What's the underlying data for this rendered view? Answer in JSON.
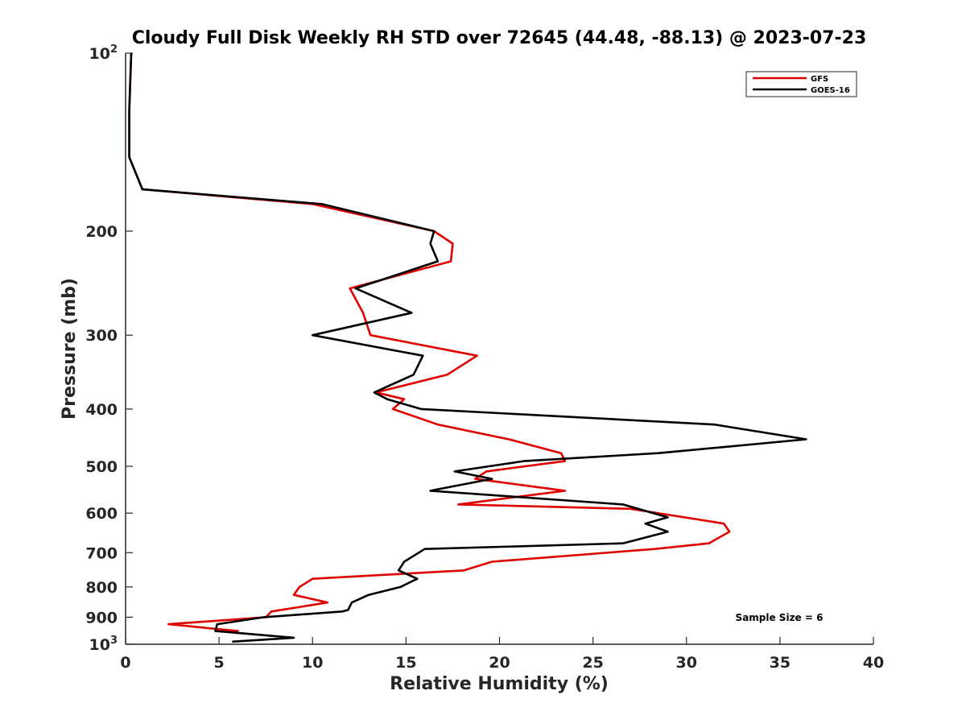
{
  "chart_data": {
    "type": "line",
    "title": "Cloudy Full Disk Weekly RH STD over 72645 (44.48, -88.13) @ 2023-07-23",
    "xlabel": "Relative Humidity (%)",
    "ylabel": "Pressure (mb)",
    "xlim": [
      0,
      40
    ],
    "ylim": [
      100,
      1000
    ],
    "y_scale": "log",
    "y_reversed": true,
    "x_ticks": [
      0,
      5,
      10,
      15,
      20,
      25,
      30,
      35,
      40
    ],
    "y_ticks": [
      {
        "value": 100,
        "base": "10",
        "exp": "2"
      },
      {
        "value": 200,
        "label": "200"
      },
      {
        "value": 300,
        "label": "300"
      },
      {
        "value": 400,
        "label": "400"
      },
      {
        "value": 500,
        "label": "500"
      },
      {
        "value": 600,
        "label": "600"
      },
      {
        "value": 700,
        "label": "700"
      },
      {
        "value": 800,
        "label": "800"
      },
      {
        "value": 900,
        "label": "900"
      },
      {
        "value": 1000,
        "base": "10",
        "exp": "3"
      }
    ],
    "grid": false,
    "legend_position": "top-right",
    "annotation": "Sample Size = 6",
    "series": [
      {
        "name": "GFS",
        "color": "#e00000",
        "points": [
          [
            0.3,
            100
          ],
          [
            0.2,
            125
          ],
          [
            0.2,
            150
          ],
          [
            0.9,
            170
          ],
          [
            10.0,
            180
          ],
          [
            16.5,
            200
          ],
          [
            17.5,
            210
          ],
          [
            17.4,
            225
          ],
          [
            12.0,
            250
          ],
          [
            12.7,
            275
          ],
          [
            13.1,
            300
          ],
          [
            18.8,
            325
          ],
          [
            17.2,
            350
          ],
          [
            13.4,
            375
          ],
          [
            14.9,
            385
          ],
          [
            14.3,
            400
          ],
          [
            16.7,
            425
          ],
          [
            20.5,
            450
          ],
          [
            23.3,
            475
          ],
          [
            23.5,
            490
          ],
          [
            19.3,
            510
          ],
          [
            18.7,
            525
          ],
          [
            23.5,
            550
          ],
          [
            17.8,
            580
          ],
          [
            27.0,
            590
          ],
          [
            32.0,
            625
          ],
          [
            32.3,
            645
          ],
          [
            31.2,
            675
          ],
          [
            28.3,
            690
          ],
          [
            19.6,
            725
          ],
          [
            18.1,
            750
          ],
          [
            10.0,
            775
          ],
          [
            9.3,
            800
          ],
          [
            9.0,
            825
          ],
          [
            10.8,
            850
          ],
          [
            7.8,
            880
          ],
          [
            7.5,
            900
          ],
          [
            2.3,
            925
          ],
          [
            6.0,
            950
          ],
          [
            5.9,
            960
          ]
        ]
      },
      {
        "name": "GOES-16",
        "color": "#000000",
        "points": [
          [
            0.3,
            100
          ],
          [
            0.2,
            125
          ],
          [
            0.2,
            150
          ],
          [
            0.9,
            170
          ],
          [
            10.5,
            180
          ],
          [
            16.5,
            200
          ],
          [
            16.3,
            210
          ],
          [
            16.7,
            225
          ],
          [
            12.3,
            250
          ],
          [
            15.3,
            275
          ],
          [
            10.0,
            300
          ],
          [
            15.9,
            325
          ],
          [
            15.4,
            350
          ],
          [
            13.3,
            375
          ],
          [
            14.0,
            385
          ],
          [
            15.8,
            400
          ],
          [
            31.5,
            425
          ],
          [
            36.4,
            450
          ],
          [
            28.5,
            475
          ],
          [
            21.3,
            490
          ],
          [
            17.6,
            510
          ],
          [
            19.6,
            525
          ],
          [
            16.3,
            550
          ],
          [
            26.6,
            580
          ],
          [
            29.0,
            610
          ],
          [
            27.8,
            625
          ],
          [
            29.0,
            645
          ],
          [
            26.6,
            675
          ],
          [
            16.0,
            690
          ],
          [
            14.9,
            725
          ],
          [
            14.6,
            750
          ],
          [
            15.6,
            775
          ],
          [
            14.7,
            800
          ],
          [
            13.0,
            825
          ],
          [
            12.1,
            850
          ],
          [
            11.9,
            875
          ],
          [
            11.6,
            880
          ],
          [
            7.4,
            900
          ],
          [
            4.9,
            925
          ],
          [
            4.8,
            950
          ],
          [
            9.0,
            975
          ],
          [
            5.7,
            990
          ]
        ]
      }
    ]
  }
}
